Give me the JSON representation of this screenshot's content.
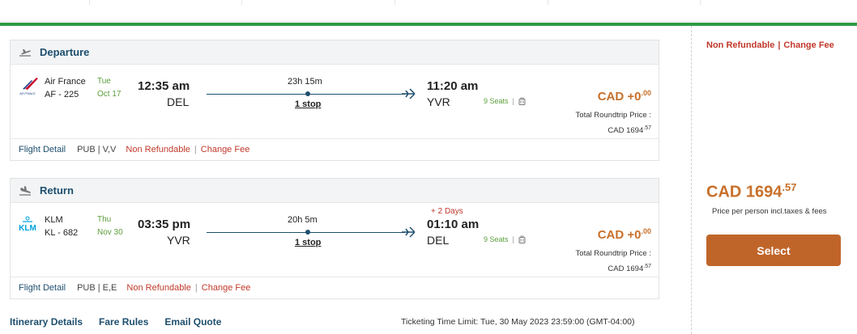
{
  "colors": {
    "accent_green": "#2e9a45",
    "brand_navy": "#1e4e6e",
    "price_orange": "#c8702a",
    "button_orange": "#c0652a",
    "warning_red": "#c0392b",
    "seats_green": "#5a9e3a"
  },
  "departure": {
    "title": "Departure",
    "icon": "takeoff-plane-icon",
    "airline_name": "Air France",
    "logo_text": "AIR FRANCE",
    "flight_number": "AF - 225",
    "day": "Tue",
    "date": "Oct 17",
    "dep_time": "12:35 am",
    "dep_city": "DEL",
    "duration": "23h 15m",
    "stops": "1 stop",
    "arr_day_offset": "",
    "arr_time": "11:20 am",
    "arr_city": "YVR",
    "seats": "9 Seats",
    "price_main": "CAD +0",
    "price_cents": ".00",
    "total_label": "Total Roundtrip Price :",
    "total_value": "CAD 1694",
    "total_cents": ".57",
    "footer": {
      "flight_detail": "Flight Detail",
      "fare_class": "PUB | V,V",
      "non_refundable": "Non Refundable",
      "pipe": "|",
      "change_fee": "Change Fee"
    }
  },
  "return": {
    "title": "Return",
    "icon": "landing-plane-icon",
    "airline_name": "KLM",
    "logo_text": "KLM",
    "flight_number": "KL - 682",
    "day": "Thu",
    "date": "Nov 30",
    "dep_time": "03:35 pm",
    "dep_city": "YVR",
    "duration": "20h 5m",
    "stops": "1 stop",
    "arr_day_offset": "+ 2 Days",
    "arr_time": "01:10 am",
    "arr_city": "DEL",
    "seats": "9 Seats",
    "price_main": "CAD +0",
    "price_cents": ".00",
    "total_label": "Total Roundtrip Price :",
    "total_value": "CAD 1694",
    "total_cents": ".57",
    "footer": {
      "flight_detail": "Flight Detail",
      "fare_class": "PUB | E,E",
      "non_refundable": "Non Refundable",
      "pipe": "|",
      "change_fee": "Change Fee"
    }
  },
  "links": {
    "itinerary": "Itinerary Details",
    "fare_rules": "Fare Rules",
    "email_quote": "Email Quote"
  },
  "ticketing": "Ticketing Time Limit: Tue, 30 May 2023 23:59:00 (GMT-04:00)",
  "summary": {
    "non_refundable": "Non Refundable",
    "pipe": "|",
    "change_fee": "Change Fee",
    "price_main": "CAD 1694",
    "price_cents": ".57",
    "per_person": "Price per person incl.taxes & fees",
    "select_label": "Select"
  }
}
